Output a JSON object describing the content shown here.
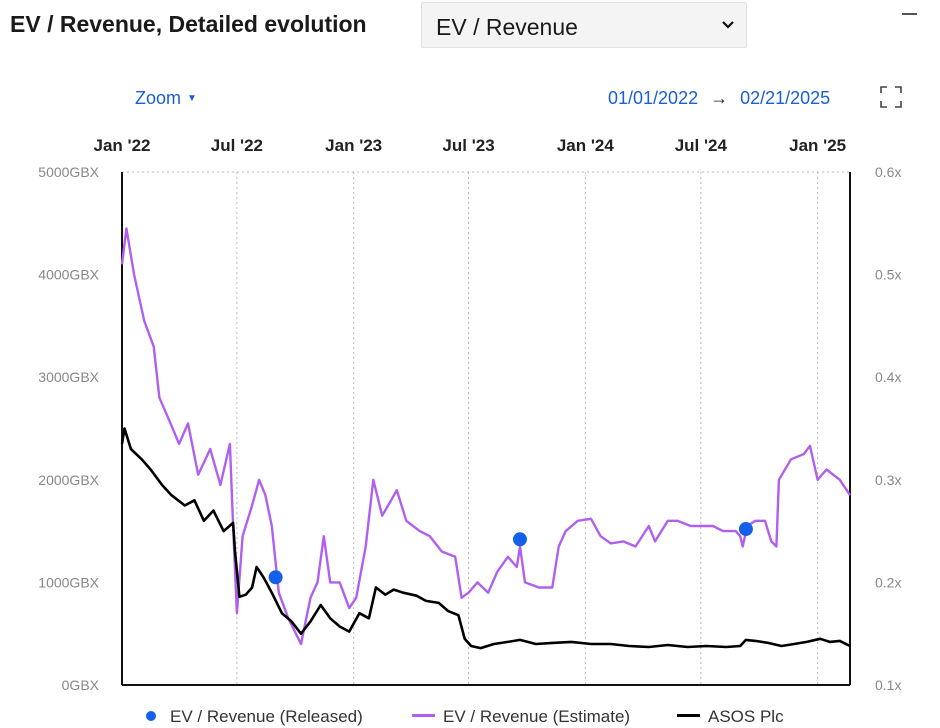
{
  "header": {
    "title": "EV / Revenue, Detailed evolution",
    "select_value": "EV / Revenue"
  },
  "toolbar": {
    "zoom_label": "Zoom",
    "date_from": "01/01/2022",
    "date_arrow": "→",
    "date_to": "02/21/2025"
  },
  "colors": {
    "released": "#1560e8",
    "estimate": "#b060f0",
    "asos": "#000000",
    "accent": "#1a5fd6"
  },
  "icons": {
    "dropdown": "chevron-down-icon",
    "minimize": "minimize-icon",
    "zoom_caret": "caret-down-icon",
    "fullscreen": "fullscreen-icon"
  },
  "chart_data": {
    "type": "line",
    "x_tick_labels": [
      "Jan '22",
      "Jul '22",
      "Jan '23",
      "Jul '23",
      "Jan '24",
      "Jul '24",
      "Jan '25"
    ],
    "x_tick_dates": [
      "2022-01-01",
      "2022-07-01",
      "2023-01-01",
      "2023-07-01",
      "2024-01-01",
      "2024-07-01",
      "2025-01-01"
    ],
    "x_range": [
      "2022-01-01",
      "2025-02-21"
    ],
    "y_left_ticks": [
      "0GBX",
      "1000GBX",
      "2000GBX",
      "3000GBX",
      "4000GBX",
      "5000GBX"
    ],
    "y_left_range": [
      0,
      5000
    ],
    "y_right_ticks": [
      "0.1x",
      "0.2x",
      "0.3x",
      "0.4x",
      "0.5x",
      "0.6x"
    ],
    "y_right_range": [
      0.1,
      0.6
    ],
    "grid": "vertical dotted",
    "legend_position": "bottom",
    "series": [
      {
        "name": "EV / Revenue (Released)",
        "axis": "right",
        "style": "markers",
        "points": [
          {
            "x": "2022-08-31",
            "y": 0.205
          },
          {
            "x": "2023-09-20",
            "y": 0.242
          },
          {
            "x": "2024-09-10",
            "y": 0.252
          }
        ]
      },
      {
        "name": "EV / Revenue (Estimate)",
        "axis": "right",
        "style": "line",
        "points": [
          {
            "x": "2022-01-01",
            "y": 0.51
          },
          {
            "x": "2022-01-08",
            "y": 0.545
          },
          {
            "x": "2022-01-20",
            "y": 0.5
          },
          {
            "x": "2022-02-05",
            "y": 0.455
          },
          {
            "x": "2022-02-20",
            "y": 0.43
          },
          {
            "x": "2022-03-01",
            "y": 0.38
          },
          {
            "x": "2022-03-15",
            "y": 0.36
          },
          {
            "x": "2022-04-01",
            "y": 0.335
          },
          {
            "x": "2022-04-15",
            "y": 0.355
          },
          {
            "x": "2022-05-01",
            "y": 0.305
          },
          {
            "x": "2022-05-20",
            "y": 0.33
          },
          {
            "x": "2022-06-05",
            "y": 0.295
          },
          {
            "x": "2022-06-20",
            "y": 0.335
          },
          {
            "x": "2022-06-25",
            "y": 0.255
          },
          {
            "x": "2022-07-01",
            "y": 0.17
          },
          {
            "x": "2022-07-10",
            "y": 0.245
          },
          {
            "x": "2022-07-25",
            "y": 0.275
          },
          {
            "x": "2022-08-05",
            "y": 0.3
          },
          {
            "x": "2022-08-15",
            "y": 0.285
          },
          {
            "x": "2022-08-25",
            "y": 0.255
          },
          {
            "x": "2022-09-05",
            "y": 0.19
          },
          {
            "x": "2022-09-20",
            "y": 0.165
          },
          {
            "x": "2022-10-10",
            "y": 0.14
          },
          {
            "x": "2022-10-25",
            "y": 0.185
          },
          {
            "x": "2022-11-05",
            "y": 0.2
          },
          {
            "x": "2022-11-15",
            "y": 0.245
          },
          {
            "x": "2022-11-25",
            "y": 0.2
          },
          {
            "x": "2022-12-10",
            "y": 0.2
          },
          {
            "x": "2022-12-25",
            "y": 0.175
          },
          {
            "x": "2023-01-05",
            "y": 0.185
          },
          {
            "x": "2023-01-20",
            "y": 0.235
          },
          {
            "x": "2023-02-01",
            "y": 0.3
          },
          {
            "x": "2023-02-15",
            "y": 0.265
          },
          {
            "x": "2023-03-01",
            "y": 0.28
          },
          {
            "x": "2023-03-10",
            "y": 0.29
          },
          {
            "x": "2023-03-25",
            "y": 0.26
          },
          {
            "x": "2023-04-15",
            "y": 0.25
          },
          {
            "x": "2023-05-01",
            "y": 0.245
          },
          {
            "x": "2023-05-20",
            "y": 0.23
          },
          {
            "x": "2023-06-10",
            "y": 0.225
          },
          {
            "x": "2023-06-20",
            "y": 0.185
          },
          {
            "x": "2023-07-01",
            "y": 0.19
          },
          {
            "x": "2023-07-15",
            "y": 0.2
          },
          {
            "x": "2023-08-01",
            "y": 0.19
          },
          {
            "x": "2023-08-15",
            "y": 0.21
          },
          {
            "x": "2023-09-01",
            "y": 0.225
          },
          {
            "x": "2023-09-15",
            "y": 0.215
          },
          {
            "x": "2023-09-20",
            "y": 0.235
          },
          {
            "x": "2023-09-28",
            "y": 0.2
          },
          {
            "x": "2023-10-20",
            "y": 0.195
          },
          {
            "x": "2023-11-10",
            "y": 0.195
          },
          {
            "x": "2023-11-20",
            "y": 0.235
          },
          {
            "x": "2023-12-01",
            "y": 0.25
          },
          {
            "x": "2023-12-20",
            "y": 0.26
          },
          {
            "x": "2024-01-10",
            "y": 0.262
          },
          {
            "x": "2024-01-25",
            "y": 0.245
          },
          {
            "x": "2024-02-10",
            "y": 0.238
          },
          {
            "x": "2024-03-01",
            "y": 0.24
          },
          {
            "x": "2024-03-20",
            "y": 0.235
          },
          {
            "x": "2024-04-10",
            "y": 0.255
          },
          {
            "x": "2024-04-20",
            "y": 0.24
          },
          {
            "x": "2024-05-10",
            "y": 0.26
          },
          {
            "x": "2024-05-25",
            "y": 0.26
          },
          {
            "x": "2024-06-15",
            "y": 0.255
          },
          {
            "x": "2024-07-01",
            "y": 0.255
          },
          {
            "x": "2024-07-20",
            "y": 0.255
          },
          {
            "x": "2024-08-05",
            "y": 0.25
          },
          {
            "x": "2024-08-25",
            "y": 0.25
          },
          {
            "x": "2024-09-01",
            "y": 0.245
          },
          {
            "x": "2024-09-05",
            "y": 0.235
          },
          {
            "x": "2024-09-12",
            "y": 0.255
          },
          {
            "x": "2024-09-25",
            "y": 0.26
          },
          {
            "x": "2024-10-10",
            "y": 0.26
          },
          {
            "x": "2024-10-20",
            "y": 0.24
          },
          {
            "x": "2024-10-28",
            "y": 0.235
          },
          {
            "x": "2024-11-01",
            "y": 0.3
          },
          {
            "x": "2024-11-20",
            "y": 0.32
          },
          {
            "x": "2024-12-10",
            "y": 0.325
          },
          {
            "x": "2024-12-20",
            "y": 0.333
          },
          {
            "x": "2025-01-01",
            "y": 0.3
          },
          {
            "x": "2025-01-15",
            "y": 0.31
          },
          {
            "x": "2025-02-05",
            "y": 0.3
          },
          {
            "x": "2025-02-21",
            "y": 0.285
          }
        ]
      },
      {
        "name": "ASOS Plc",
        "axis": "left",
        "style": "line",
        "points": [
          {
            "x": "2022-01-01",
            "y": 2350
          },
          {
            "x": "2022-01-05",
            "y": 2500
          },
          {
            "x": "2022-01-15",
            "y": 2300
          },
          {
            "x": "2022-02-01",
            "y": 2200
          },
          {
            "x": "2022-02-15",
            "y": 2100
          },
          {
            "x": "2022-03-05",
            "y": 1950
          },
          {
            "x": "2022-03-20",
            "y": 1850
          },
          {
            "x": "2022-04-10",
            "y": 1750
          },
          {
            "x": "2022-04-25",
            "y": 1800
          },
          {
            "x": "2022-05-10",
            "y": 1600
          },
          {
            "x": "2022-05-25",
            "y": 1700
          },
          {
            "x": "2022-06-10",
            "y": 1500
          },
          {
            "x": "2022-06-25",
            "y": 1580
          },
          {
            "x": "2022-06-28",
            "y": 1300
          },
          {
            "x": "2022-07-05",
            "y": 860
          },
          {
            "x": "2022-07-15",
            "y": 880
          },
          {
            "x": "2022-07-25",
            "y": 950
          },
          {
            "x": "2022-08-01",
            "y": 1150
          },
          {
            "x": "2022-08-12",
            "y": 1050
          },
          {
            "x": "2022-08-25",
            "y": 900
          },
          {
            "x": "2022-09-10",
            "y": 700
          },
          {
            "x": "2022-09-25",
            "y": 620
          },
          {
            "x": "2022-10-10",
            "y": 500
          },
          {
            "x": "2022-10-25",
            "y": 620
          },
          {
            "x": "2022-11-10",
            "y": 780
          },
          {
            "x": "2022-11-25",
            "y": 650
          },
          {
            "x": "2022-12-10",
            "y": 570
          },
          {
            "x": "2022-12-25",
            "y": 520
          },
          {
            "x": "2023-01-10",
            "y": 700
          },
          {
            "x": "2023-01-25",
            "y": 650
          },
          {
            "x": "2023-02-05",
            "y": 950
          },
          {
            "x": "2023-02-20",
            "y": 880
          },
          {
            "x": "2023-03-05",
            "y": 930
          },
          {
            "x": "2023-03-20",
            "y": 900
          },
          {
            "x": "2023-04-10",
            "y": 870
          },
          {
            "x": "2023-04-25",
            "y": 820
          },
          {
            "x": "2023-05-15",
            "y": 800
          },
          {
            "x": "2023-05-30",
            "y": 720
          },
          {
            "x": "2023-06-15",
            "y": 680
          },
          {
            "x": "2023-06-25",
            "y": 450
          },
          {
            "x": "2023-07-05",
            "y": 380
          },
          {
            "x": "2023-07-20",
            "y": 360
          },
          {
            "x": "2023-08-10",
            "y": 400
          },
          {
            "x": "2023-09-01",
            "y": 420
          },
          {
            "x": "2023-09-20",
            "y": 440
          },
          {
            "x": "2023-10-15",
            "y": 400
          },
          {
            "x": "2023-11-10",
            "y": 410
          },
          {
            "x": "2023-12-10",
            "y": 420
          },
          {
            "x": "2024-01-10",
            "y": 400
          },
          {
            "x": "2024-02-10",
            "y": 400
          },
          {
            "x": "2024-03-10",
            "y": 380
          },
          {
            "x": "2024-04-10",
            "y": 370
          },
          {
            "x": "2024-05-10",
            "y": 390
          },
          {
            "x": "2024-06-10",
            "y": 370
          },
          {
            "x": "2024-07-10",
            "y": 380
          },
          {
            "x": "2024-08-10",
            "y": 370
          },
          {
            "x": "2024-09-01",
            "y": 380
          },
          {
            "x": "2024-09-10",
            "y": 440
          },
          {
            "x": "2024-09-25",
            "y": 430
          },
          {
            "x": "2024-10-15",
            "y": 410
          },
          {
            "x": "2024-11-05",
            "y": 380
          },
          {
            "x": "2024-11-25",
            "y": 400
          },
          {
            "x": "2024-12-15",
            "y": 420
          },
          {
            "x": "2025-01-05",
            "y": 450
          },
          {
            "x": "2025-01-20",
            "y": 420
          },
          {
            "x": "2025-02-05",
            "y": 430
          },
          {
            "x": "2025-02-21",
            "y": 380
          }
        ]
      }
    ]
  }
}
